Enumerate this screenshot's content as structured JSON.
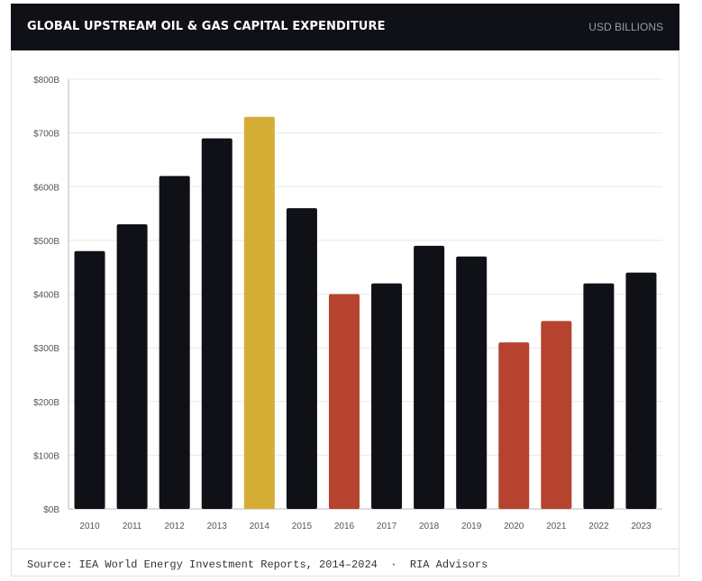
{
  "header": {
    "title": "GLOBAL UPSTREAM OIL & GAS CAPITAL EXPENDITURE",
    "unit_label": "USD BILLIONS"
  },
  "footer": {
    "source": "Source: IEA World Energy Investment Reports, 2014–2024  ·  RIA Advisors"
  },
  "colors": {
    "base": "#0f1117",
    "peak": "#d4ad35",
    "decline": "#b5432f",
    "grid": "#e8e8e8",
    "axis_text": "#555555"
  },
  "chart_data": {
    "type": "bar",
    "title": "GLOBAL UPSTREAM OIL & GAS CAPITAL EXPENDITURE",
    "xlabel": "",
    "ylabel": "",
    "categories": [
      "2010",
      "2011",
      "2012",
      "2013",
      "2014",
      "2015",
      "2016",
      "2017",
      "2018",
      "2019",
      "2020",
      "2021",
      "2022",
      "2023"
    ],
    "values": [
      480,
      530,
      620,
      690,
      730,
      560,
      400,
      420,
      490,
      470,
      310,
      350,
      420,
      440
    ],
    "highlight": [
      "base",
      "base",
      "base",
      "base",
      "peak",
      "base",
      "decline",
      "base",
      "base",
      "base",
      "decline",
      "decline",
      "base",
      "base"
    ],
    "ylim": [
      0,
      800
    ],
    "yticks": [
      0,
      100,
      200,
      300,
      400,
      500,
      600,
      700,
      800
    ],
    "ytick_labels": [
      "$0B",
      "$100B",
      "$200B",
      "$300B",
      "$400B",
      "$500B",
      "$600B",
      "$700B",
      "$800B"
    ],
    "grid": true,
    "legend": "none"
  }
}
